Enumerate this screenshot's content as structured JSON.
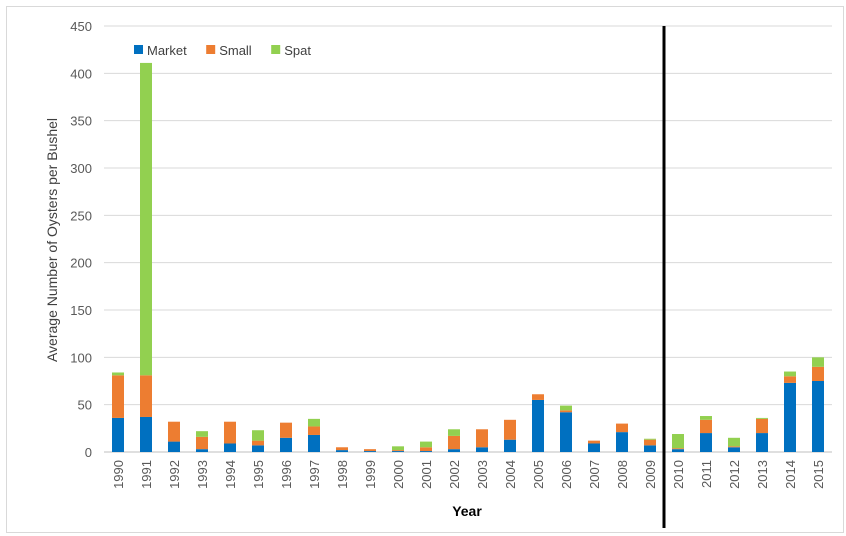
{
  "chart_data": {
    "type": "bar",
    "stacked": true,
    "xlabel": "Year",
    "ylabel": "Average Number of Oysters per Bushel",
    "ylim": [
      0,
      450
    ],
    "yticks": [
      0,
      50,
      100,
      150,
      200,
      250,
      300,
      350,
      400,
      450
    ],
    "grid": true,
    "legend_position": "top-left",
    "categories": [
      "1990",
      "1991",
      "1992",
      "1993",
      "1994",
      "1995",
      "1996",
      "1997",
      "1998",
      "1999",
      "2000",
      "2001",
      "2002",
      "2003",
      "2004",
      "2005",
      "2006",
      "2007",
      "2008",
      "2009",
      "2010",
      "2011",
      "2012",
      "2013",
      "2014",
      "2015"
    ],
    "series": [
      {
        "name": "Market",
        "color": "#0070c0",
        "values": [
          36,
          37,
          11,
          3,
          9,
          7,
          15,
          18,
          2,
          1,
          1,
          1,
          3,
          5,
          13,
          55,
          42,
          9,
          21,
          7,
          3,
          20,
          5,
          20,
          73,
          75
        ]
      },
      {
        "name": "Small",
        "color": "#ed7d31",
        "values": [
          45,
          44,
          21,
          13,
          23,
          5,
          16,
          9,
          3,
          2,
          1,
          4,
          14,
          19,
          21,
          6,
          2,
          3,
          9,
          6,
          1,
          14,
          1,
          15,
          7,
          15
        ]
      },
      {
        "name": "Spat",
        "color": "#92d050",
        "values": [
          3,
          330,
          0,
          6,
          0,
          11,
          0,
          8,
          0,
          0,
          4,
          6,
          7,
          0,
          0,
          0,
          5,
          0,
          0,
          1,
          15,
          4,
          9,
          1,
          5,
          10
        ]
      }
    ],
    "divider_after_category": "2009"
  }
}
